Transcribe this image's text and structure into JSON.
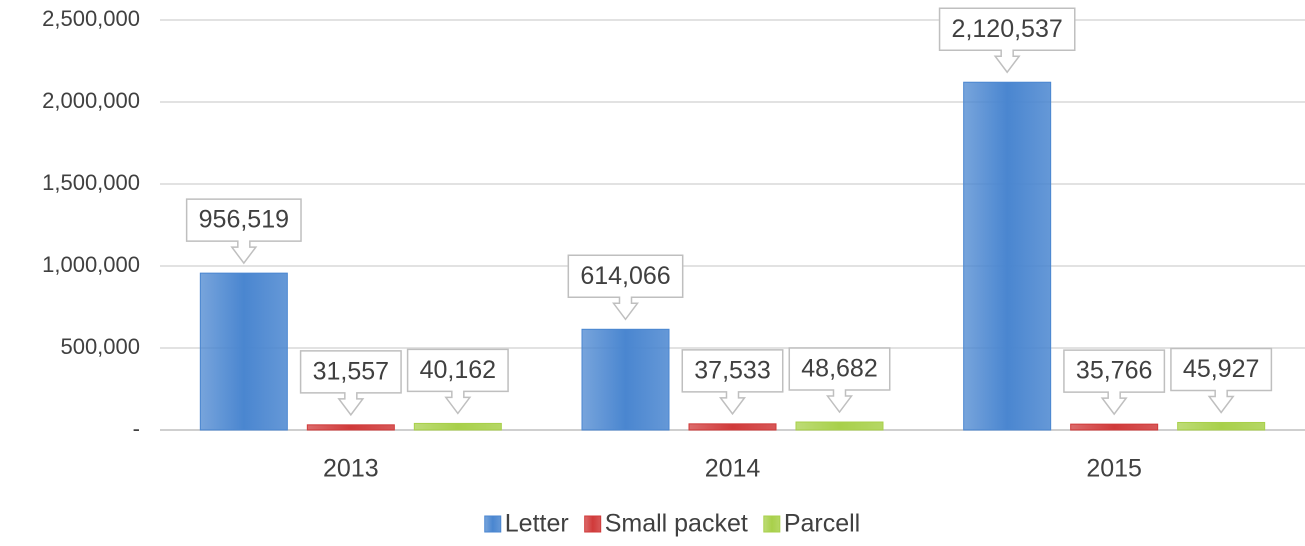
{
  "chart_data": {
    "type": "bar",
    "categories": [
      "2013",
      "2014",
      "2015"
    ],
    "series": [
      {
        "name": "Letter",
        "color": "#4a86d0",
        "values": [
          956519,
          614066,
          2120537
        ],
        "value_labels": [
          "956,519",
          "614,066",
          "2,120,537"
        ]
      },
      {
        "name": "Small packet",
        "color": "#d03a3a",
        "values": [
          31557,
          37533,
          35766
        ],
        "value_labels": [
          "31,557",
          "37,533",
          "35,766"
        ]
      },
      {
        "name": "Parcell",
        "color": "#a8d04a",
        "values": [
          40162,
          48682,
          45927
        ],
        "value_labels": [
          "40,162",
          "48,682",
          "45,927"
        ]
      }
    ],
    "ylim": [
      0,
      2500000
    ],
    "yticks": [
      {
        "value": 0,
        "label": "-"
      },
      {
        "value": 500000,
        "label": "500,000"
      },
      {
        "value": 1000000,
        "label": "1,000,000"
      },
      {
        "value": 1500000,
        "label": "1,500,000"
      },
      {
        "value": 2000000,
        "label": "2,000,000"
      },
      {
        "value": 2500000,
        "label": "2,500,000"
      }
    ],
    "grid": true,
    "legend": "bottom"
  }
}
